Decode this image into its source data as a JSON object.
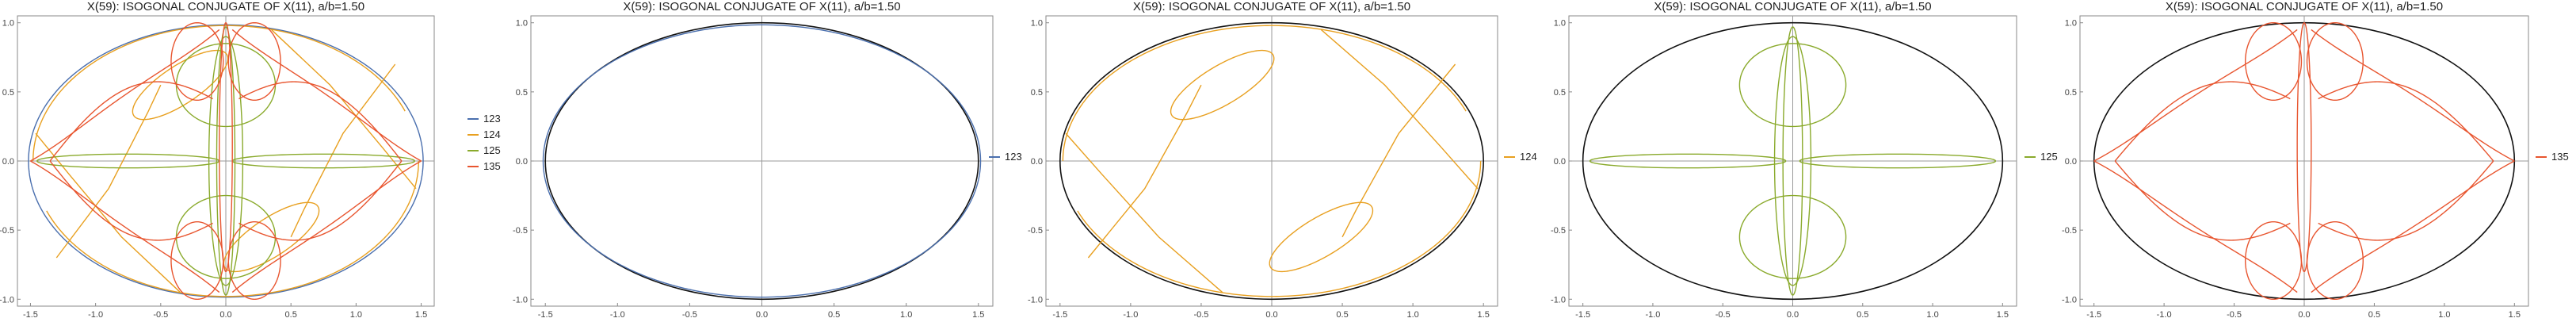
{
  "colors": {
    "123": "#4a6fae",
    "124": "#e8a020",
    "125": "#8aaa2c",
    "135": "#e8552f",
    "ellipse": "#111111",
    "axis": "#9a9a9a"
  },
  "chart_data": [
    {
      "type": "line",
      "title": "X(59): ISOGONAL CONJUGATE OF X(11), a/b=1.50",
      "xlim": [
        -1.6,
        1.6
      ],
      "ylim": [
        -1.05,
        1.05
      ],
      "xticks": [
        "-1.5",
        "-1.0",
        "-0.5",
        "0.0",
        "0.5",
        "1.0",
        "1.5"
      ],
      "yticks": [
        "-1.0",
        "-0.5",
        "0.0",
        "0.5",
        "1.0"
      ],
      "legend_position": "right",
      "series": [
        {
          "name": "123",
          "color_key": "123",
          "kind": "near-ellipse"
        },
        {
          "name": "124",
          "color_key": "124",
          "kind": "loops"
        },
        {
          "name": "125",
          "color_key": "125",
          "kind": "lobes"
        },
        {
          "name": "135",
          "color_key": "135",
          "kind": "scallops"
        }
      ],
      "reference_ellipse": false
    },
    {
      "type": "line",
      "title": "X(59): ISOGONAL CONJUGATE OF X(11), a/b=1.50",
      "xlim": [
        -1.6,
        1.6
      ],
      "ylim": [
        -1.05,
        1.05
      ],
      "xticks": [
        "-1.5",
        "-1.0",
        "-0.5",
        "0.0",
        "0.5",
        "1.0",
        "1.5"
      ],
      "yticks": [
        "-1.0",
        "-0.5",
        "0.0",
        "0.5",
        "1.0"
      ],
      "legend_position": "right",
      "series": [
        {
          "name": "123",
          "color_key": "123",
          "kind": "near-ellipse"
        }
      ],
      "reference_ellipse": true
    },
    {
      "type": "line",
      "title": "X(59): ISOGONAL CONJUGATE OF X(11), a/b=1.50",
      "xlim": [
        -1.6,
        1.6
      ],
      "ylim": [
        -1.05,
        1.05
      ],
      "xticks": [
        "-1.5",
        "-1.0",
        "-0.5",
        "0.0",
        "0.5",
        "1.0",
        "1.5"
      ],
      "yticks": [
        "-1.0",
        "-0.5",
        "0.0",
        "0.5",
        "1.0"
      ],
      "legend_position": "right",
      "series": [
        {
          "name": "124",
          "color_key": "124",
          "kind": "loops"
        }
      ],
      "reference_ellipse": true
    },
    {
      "type": "line",
      "title": "X(59): ISOGONAL CONJUGATE OF X(11), a/b=1.50",
      "xlim": [
        -1.6,
        1.6
      ],
      "ylim": [
        -1.05,
        1.05
      ],
      "xticks": [
        "-1.5",
        "-1.0",
        "-0.5",
        "0.0",
        "0.5",
        "1.0",
        "1.5"
      ],
      "yticks": [
        "-1.0",
        "-0.5",
        "0.0",
        "0.5",
        "1.0"
      ],
      "legend_position": "right",
      "series": [
        {
          "name": "125",
          "color_key": "125",
          "kind": "lobes"
        }
      ],
      "reference_ellipse": true
    },
    {
      "type": "line",
      "title": "X(59): ISOGONAL CONJUGATE OF X(11), a/b=1.50",
      "xlim": [
        -1.6,
        1.6
      ],
      "ylim": [
        -1.05,
        1.05
      ],
      "xticks": [
        "-1.5",
        "-1.0",
        "-0.5",
        "0.0",
        "0.5",
        "1.0",
        "1.5"
      ],
      "yticks": [
        "-1.0",
        "-0.5",
        "0.0",
        "0.5",
        "1.0"
      ],
      "legend_position": "right",
      "series": [
        {
          "name": "135",
          "color_key": "135",
          "kind": "scallops"
        }
      ],
      "reference_ellipse": true
    }
  ]
}
